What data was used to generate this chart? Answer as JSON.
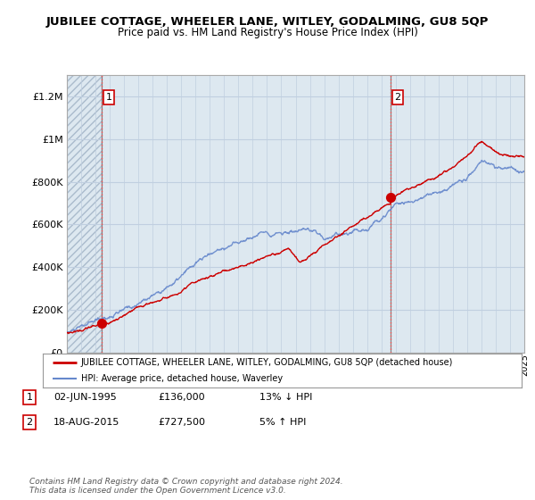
{
  "title": "JUBILEE COTTAGE, WHEELER LANE, WITLEY, GODALMING, GU8 5QP",
  "subtitle": "Price paid vs. HM Land Registry's House Price Index (HPI)",
  "ylim": [
    0,
    1300000
  ],
  "yticks": [
    0,
    200000,
    400000,
    600000,
    800000,
    1000000,
    1200000
  ],
  "ytick_labels": [
    "£0",
    "£200K",
    "£400K",
    "£600K",
    "£800K",
    "£1M",
    "£1.2M"
  ],
  "x_start_year": 1993,
  "x_end_year": 2025,
  "sale1_year": 1995.42,
  "sale1_price": 136000,
  "sale1_label": "1",
  "sale2_year": 2015.63,
  "sale2_price": 727500,
  "sale2_label": "2",
  "line_color_sale": "#cc0000",
  "line_color_hpi": "#6688cc",
  "dot_color": "#cc0000",
  "vline_red_color": "#ff4444",
  "vline_grey_color": "#666666",
  "bg_color": "#dde8f0",
  "hatch_color": "#aabbcc",
  "grid_color": "#c0cfe0",
  "legend_line1": "JUBILEE COTTAGE, WHEELER LANE, WITLEY, GODALMING, GU8 5QP (detached house)",
  "legend_line2": "HPI: Average price, detached house, Waverley",
  "footer": "Contains HM Land Registry data © Crown copyright and database right 2024.\nThis data is licensed under the Open Government Licence v3.0.",
  "table_rows": [
    {
      "num": "1",
      "date": "02-JUN-1995",
      "price": "£136,000",
      "pct": "13% ↓ HPI"
    },
    {
      "num": "2",
      "date": "18-AUG-2015",
      "price": "£727,500",
      "pct": "5% ↑ HPI"
    }
  ]
}
